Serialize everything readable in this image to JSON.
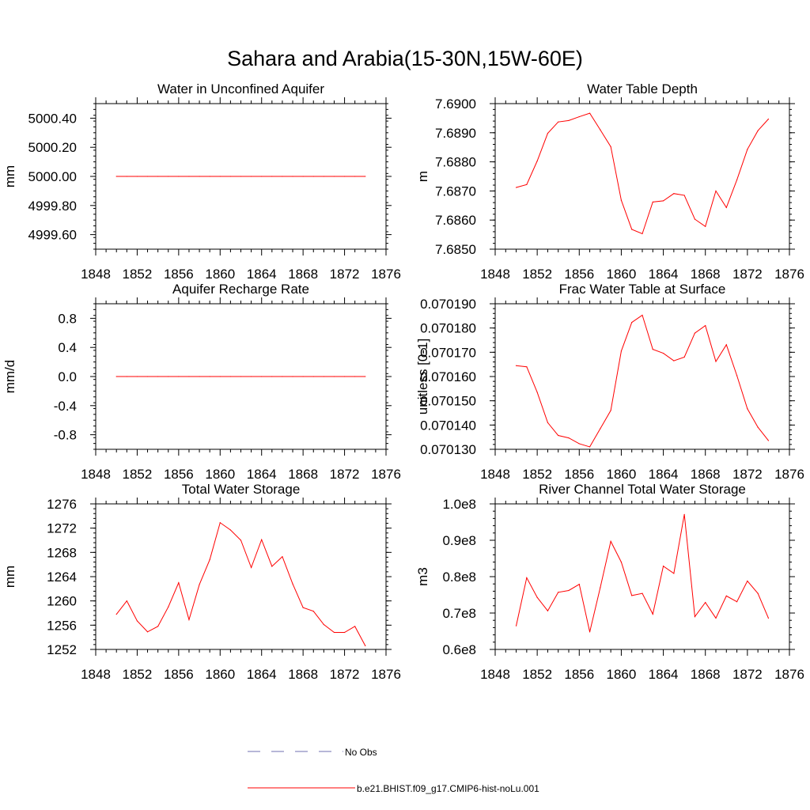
{
  "figure": {
    "title": "Sahara and Arabia(15-30N,15W-60E)",
    "legend": [
      {
        "label": "No Obs",
        "color": "#6f6fb0",
        "style": "dashed"
      },
      {
        "label": "b.e21.BHIST.f09_g17.CMIP6-hist-noLu.001",
        "color": "#ff0000",
        "style": "solid"
      }
    ]
  },
  "chart_data": [
    {
      "type": "line",
      "title": "Water in Unconfined Aquifer",
      "ylabel": "mm",
      "xlim": [
        1848,
        1876
      ],
      "ylim": [
        4999.5,
        5000.5
      ],
      "xticks": [
        1848,
        1852,
        1856,
        1860,
        1864,
        1868,
        1872,
        1876
      ],
      "yticks": [
        4999.6,
        4999.8,
        5000.0,
        5000.2,
        5000.4
      ],
      "ytick_labels": [
        "4999.60",
        "4999.80",
        "5000.00",
        "5000.20",
        "5000.40"
      ],
      "x": [
        1850,
        1851,
        1852,
        1853,
        1854,
        1855,
        1856,
        1857,
        1858,
        1859,
        1860,
        1861,
        1862,
        1863,
        1864,
        1865,
        1866,
        1867,
        1868,
        1869,
        1870,
        1871,
        1872,
        1873,
        1874
      ],
      "series": [
        {
          "values": [
            5000,
            5000,
            5000,
            5000,
            5000,
            5000,
            5000,
            5000,
            5000,
            5000,
            5000,
            5000,
            5000,
            5000,
            5000,
            5000,
            5000,
            5000,
            5000,
            5000,
            5000,
            5000,
            5000,
            5000,
            5000
          ],
          "color": "#ff0000"
        }
      ]
    },
    {
      "type": "line",
      "title": "Water Table Depth",
      "ylabel": "m",
      "xlim": [
        1848,
        1876
      ],
      "ylim": [
        7.685,
        7.69
      ],
      "xticks": [
        1848,
        1852,
        1856,
        1860,
        1864,
        1868,
        1872,
        1876
      ],
      "yticks": [
        7.685,
        7.686,
        7.687,
        7.688,
        7.689,
        7.69
      ],
      "ytick_labels": [
        "7.6850",
        "7.6860",
        "7.6870",
        "7.6880",
        "7.6890",
        "7.6900"
      ],
      "x": [
        1850,
        1851,
        1852,
        1853,
        1854,
        1855,
        1856,
        1857,
        1858,
        1859,
        1860,
        1861,
        1862,
        1863,
        1864,
        1865,
        1866,
        1867,
        1868,
        1869,
        1870,
        1871,
        1872,
        1873,
        1874
      ],
      "series": [
        {
          "values": [
            7.68712,
            7.68722,
            7.68803,
            7.68898,
            7.68937,
            7.68942,
            7.68955,
            7.68967,
            7.6891,
            7.68852,
            7.68668,
            7.68568,
            7.68553,
            7.68662,
            7.68666,
            7.68691,
            7.68685,
            7.68603,
            7.68578,
            7.687,
            7.68643,
            7.68738,
            7.68843,
            7.68907,
            7.68947
          ],
          "color": "#ff0000"
        }
      ]
    },
    {
      "type": "line",
      "title": "Aquifer Recharge Rate",
      "ylabel": "mm/d",
      "xlim": [
        1848,
        1876
      ],
      "ylim": [
        -1.0,
        1.0
      ],
      "xticks": [
        1848,
        1852,
        1856,
        1860,
        1864,
        1868,
        1872,
        1876
      ],
      "yticks": [
        -0.8,
        -0.4,
        0.0,
        0.4,
        0.8
      ],
      "ytick_labels": [
        "-0.8",
        "-0.4",
        "0.0",
        "0.4",
        "0.8"
      ],
      "x": [
        1850,
        1851,
        1852,
        1853,
        1854,
        1855,
        1856,
        1857,
        1858,
        1859,
        1860,
        1861,
        1862,
        1863,
        1864,
        1865,
        1866,
        1867,
        1868,
        1869,
        1870,
        1871,
        1872,
        1873,
        1874
      ],
      "series": [
        {
          "values": [
            0,
            0,
            0,
            0,
            0,
            0,
            0,
            0,
            0,
            0,
            0,
            0,
            0,
            0,
            0,
            0,
            0,
            0,
            0,
            0,
            0,
            0,
            0,
            0,
            0
          ],
          "color": "#ff0000"
        }
      ]
    },
    {
      "type": "line",
      "title": "Frac Water Table at Surface",
      "ylabel": "unitless [0-1]",
      "xlim": [
        1848,
        1876
      ],
      "ylim": [
        0.07013,
        0.07019
      ],
      "xticks": [
        1848,
        1852,
        1856,
        1860,
        1864,
        1868,
        1872,
        1876
      ],
      "yticks": [
        0.07013,
        0.07014,
        0.07015,
        0.07016,
        0.07017,
        0.07018,
        0.07019
      ],
      "ytick_labels": [
        "0.070130",
        "0.070140",
        "0.070150",
        "0.070160",
        "0.070170",
        "0.070180",
        "0.070190"
      ],
      "x": [
        1850,
        1851,
        1852,
        1853,
        1854,
        1855,
        1856,
        1857,
        1858,
        1859,
        1860,
        1861,
        1862,
        1863,
        1864,
        1865,
        1866,
        1867,
        1868,
        1869,
        1870,
        1871,
        1872,
        1873,
        1874
      ],
      "series": [
        {
          "values": [
            0.0701645,
            0.070164,
            0.0701535,
            0.070141,
            0.0701357,
            0.0701347,
            0.0701323,
            0.070131,
            0.0701385,
            0.070146,
            0.0701705,
            0.0701823,
            0.0701853,
            0.0701712,
            0.0701696,
            0.0701665,
            0.070168,
            0.0701779,
            0.070181,
            0.0701662,
            0.0701731,
            0.0701604,
            0.0701467,
            0.0701391,
            0.0701336
          ],
          "color": "#ff0000"
        }
      ]
    },
    {
      "type": "line",
      "title": "Total Water Storage",
      "ylabel": "mm",
      "xlim": [
        1848,
        1876
      ],
      "ylim": [
        1252,
        1276
      ],
      "xticks": [
        1848,
        1852,
        1856,
        1860,
        1864,
        1868,
        1872,
        1876
      ],
      "yticks": [
        1252,
        1256,
        1260,
        1264,
        1268,
        1272,
        1276
      ],
      "ytick_labels": [
        "1252",
        "1256",
        "1260",
        "1264",
        "1268",
        "1272",
        "1276"
      ],
      "x": [
        1850,
        1851,
        1852,
        1853,
        1854,
        1855,
        1856,
        1857,
        1858,
        1859,
        1860,
        1861,
        1862,
        1863,
        1864,
        1865,
        1866,
        1867,
        1868,
        1869,
        1870,
        1871,
        1872,
        1873,
        1874
      ],
      "series": [
        {
          "values": [
            1257.8,
            1260.0,
            1256.7,
            1254.9,
            1255.8,
            1259.0,
            1263.0,
            1256.9,
            1262.7,
            1266.8,
            1272.9,
            1271.7,
            1270.0,
            1265.5,
            1270.1,
            1265.7,
            1267.3,
            1262.8,
            1258.9,
            1258.3,
            1256.1,
            1254.8,
            1254.8,
            1255.8,
            1252.6
          ],
          "color": "#ff0000"
        }
      ]
    },
    {
      "type": "line",
      "title": "River Channel Total Water Storage",
      "ylabel": "m3",
      "xlim": [
        1848,
        1876
      ],
      "ylim": [
        0.6,
        1.0
      ],
      "xticks": [
        1848,
        1852,
        1856,
        1860,
        1864,
        1868,
        1872,
        1876
      ],
      "yticks": [
        0.6,
        0.7,
        0.8,
        0.9,
        1.0
      ],
      "ytick_labels": [
        "0.6e8",
        "0.7e8",
        "0.8e8",
        "0.9e8",
        "1.0e8"
      ],
      "x": [
        1850,
        1851,
        1852,
        1853,
        1854,
        1855,
        1856,
        1857,
        1858,
        1859,
        1860,
        1861,
        1862,
        1863,
        1864,
        1865,
        1866,
        1867,
        1868,
        1869,
        1870,
        1871,
        1872,
        1873,
        1874
      ],
      "series": [
        {
          "values": [
            0.665,
            0.797,
            0.743,
            0.706,
            0.757,
            0.762,
            0.779,
            0.648,
            0.77,
            0.897,
            0.84,
            0.748,
            0.754,
            0.697,
            0.829,
            0.809,
            0.971,
            0.69,
            0.729,
            0.686,
            0.747,
            0.731,
            0.788,
            0.754,
            0.686
          ],
          "color": "#ff0000"
        }
      ]
    }
  ]
}
